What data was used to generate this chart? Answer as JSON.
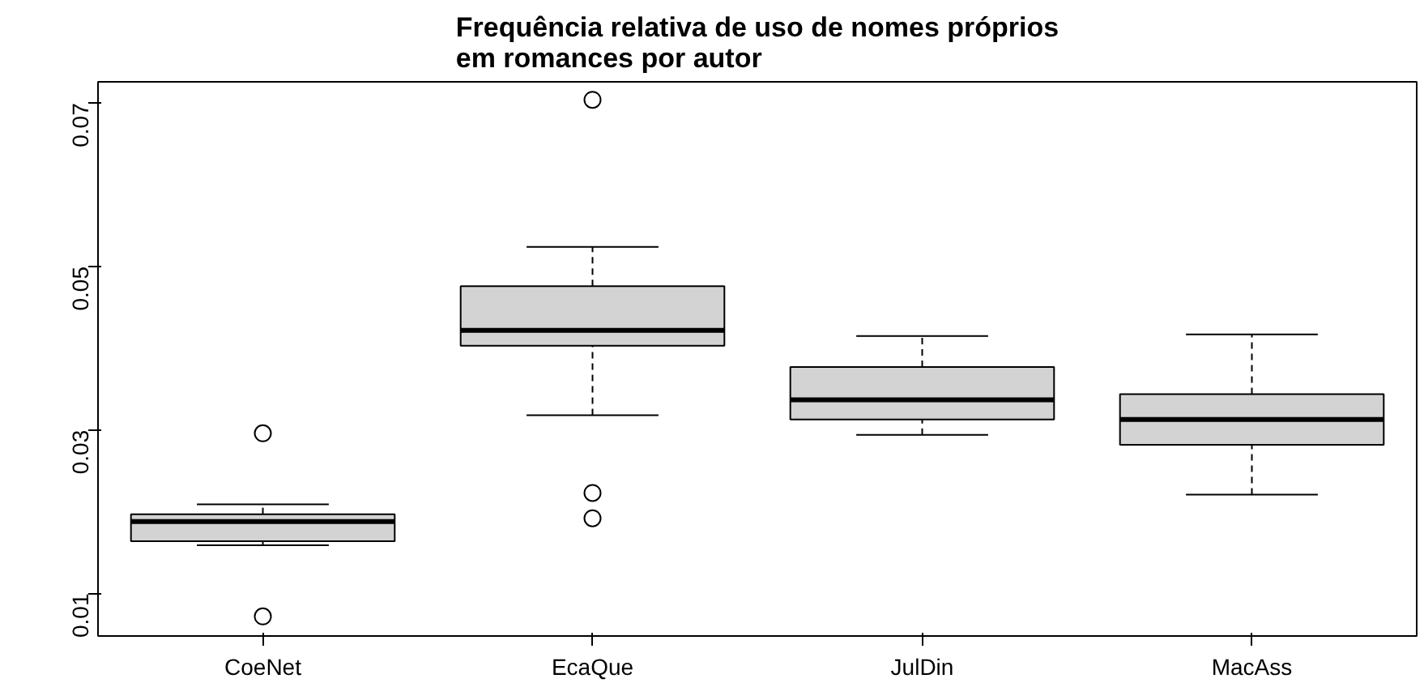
{
  "chart_data": {
    "type": "box",
    "title": "Frequência relativa de uso de nomes próprios\nem romances por autor",
    "categories": [
      "CoeNet",
      "EcaQue",
      "JulDin",
      "MacAss"
    ],
    "color": "#d3d3d3",
    "boxes": [
      {
        "low": 0.0159,
        "q1": 0.0164,
        "median": 0.0188,
        "q3": 0.0197,
        "high": 0.0209,
        "outliers": [
          0.0296,
          0.0072
        ]
      },
      {
        "low": 0.0318,
        "q1": 0.0403,
        "median": 0.0422,
        "q3": 0.0476,
        "high": 0.0524,
        "outliers": [
          0.0704,
          0.0223,
          0.0192
        ]
      },
      {
        "low": 0.0294,
        "q1": 0.0313,
        "median": 0.0337,
        "q3": 0.0377,
        "high": 0.0415
      },
      {
        "low": 0.0221,
        "q1": 0.0282,
        "median": 0.0313,
        "q3": 0.0344,
        "high": 0.0417
      }
    ],
    "ylim": [
      0.0048,
      0.0726
    ],
    "yticks": [
      0.01,
      0.03,
      0.05,
      0.07
    ],
    "grid": false
  }
}
